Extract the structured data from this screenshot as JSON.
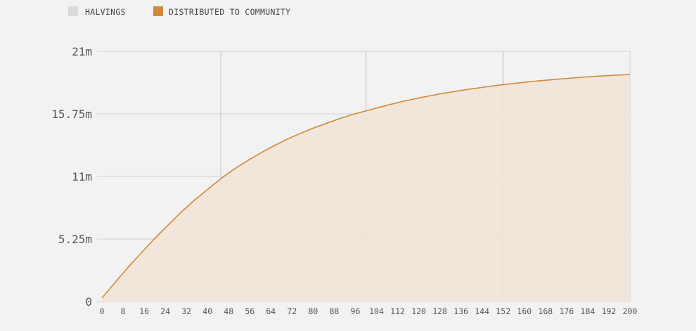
{
  "colors": {
    "halvings": "#d9d9d9",
    "distributed": "#d08a3c",
    "area_fill": "#f2e3d6",
    "grid": "#dddddd",
    "background": "#f2f2f2"
  },
  "legend": {
    "halvings_label": "HALVINGS",
    "distributed_label": "DISTRIBUTED TO COMMUNITY"
  },
  "chart_data": {
    "type": "area",
    "title": "",
    "xlabel": "",
    "ylabel": "",
    "xlim": [
      0,
      200
    ],
    "ylim": [
      0,
      21000000
    ],
    "x_ticks": [
      0,
      8,
      16,
      24,
      32,
      40,
      48,
      56,
      64,
      72,
      80,
      88,
      96,
      104,
      112,
      120,
      128,
      136,
      144,
      152,
      160,
      168,
      176,
      184,
      192,
      200
    ],
    "x_tick_labels": [
      "0",
      "8",
      "16",
      "24",
      "32",
      "40",
      "48",
      "56",
      "64",
      "72",
      "80",
      "88",
      "96",
      "104",
      "112",
      "120",
      "128",
      "136",
      "144",
      "152",
      "160",
      "168",
      "176",
      "184",
      "192",
      "200"
    ],
    "y_ticks": [
      0,
      5250000,
      10500000,
      15750000,
      21000000
    ],
    "y_tick_labels": [
      "0",
      "5.25m",
      "11m",
      "15.75m",
      "21m"
    ],
    "halvings_x": [
      45,
      100,
      152
    ],
    "legend_position": "top-left",
    "grid": true,
    "series": [
      {
        "name": "DISTRIBUTED TO COMMUNITY",
        "x": [
          0,
          5,
          10,
          15,
          20,
          25,
          30,
          35,
          40,
          45,
          50,
          55,
          60,
          65,
          70,
          75,
          80,
          85,
          90,
          95,
          100,
          105,
          110,
          115,
          120,
          125,
          130,
          135,
          140,
          145,
          150,
          155,
          160,
          165,
          170,
          175,
          180,
          185,
          190,
          195,
          200
        ],
        "values": [
          300000,
          1600000,
          2900000,
          4100000,
          5300000,
          6400000,
          7500000,
          8500000,
          9400000,
          10300000,
          11100000,
          11800000,
          12450000,
          13050000,
          13600000,
          14100000,
          14550000,
          14950000,
          15350000,
          15700000,
          16000000,
          16300000,
          16580000,
          16850000,
          17080000,
          17300000,
          17500000,
          17680000,
          17850000,
          18000000,
          18150000,
          18280000,
          18400000,
          18510000,
          18610000,
          18700000,
          18790000,
          18870000,
          18940000,
          19000000,
          19050000
        ]
      }
    ]
  }
}
